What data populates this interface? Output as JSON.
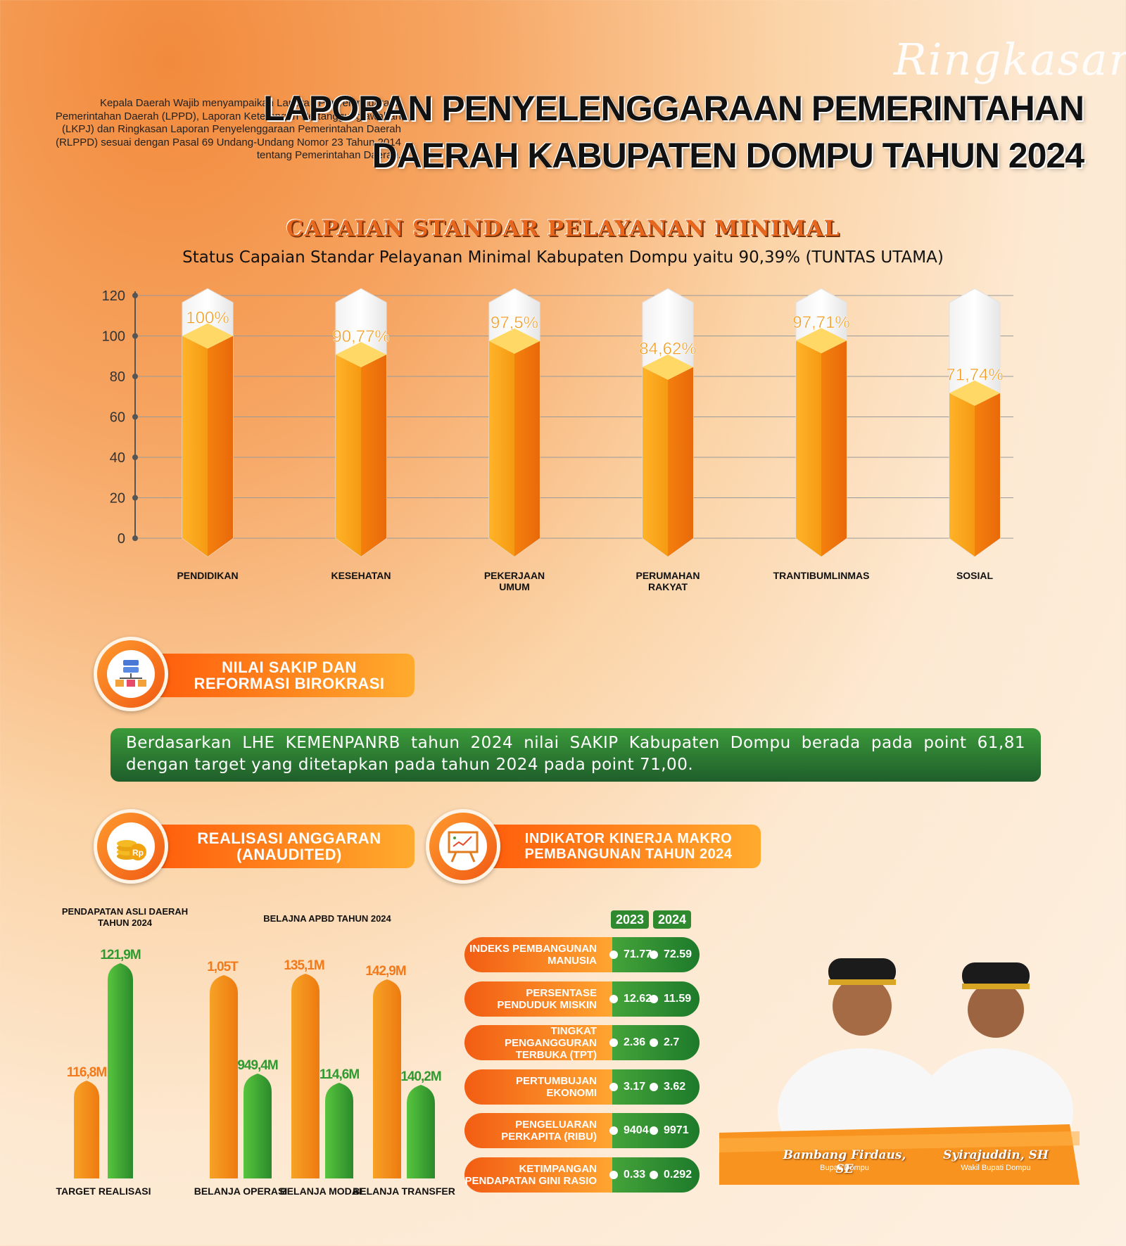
{
  "header": {
    "script_word": "Ringkasan",
    "intro": "Kepala Daerah Wajib menyampaikan Laporan Penyelenggaraan Pemerintahan Daerah (LPPD), Laporan Keterangan Pertanggungjawaban (LKPJ) dan Ringkasan Laporan Penyelenggaraan Pemerintahan Daerah (RLPPD) sesuai dengan Pasal 69 Undang-Undang Nomor 23 Tahun 2014 tentang Pemerintahan Daerah.",
    "title_line1": "LAPORAN PENYELENGGARAAN PEMERINTAHAN",
    "title_line2": "DAERAH KABUPATEN DOMPU TAHUN 2024"
  },
  "spm": {
    "heading": "CAPAIAN STANDAR PELAYANAN MINIMAL",
    "subtitle": "Status Capaian Standar Pelayanan Minimal Kabupaten Dompu yaitu 90,39% (TUNTAS UTAMA)"
  },
  "sakip": {
    "badge_line1": "NILAI SAKIP DAN",
    "badge_line2": "REFORMASI BIROKRASI",
    "text": "Berdasarkan LHE KEMENPANRB tahun 2024 nilai SAKIP Kabupaten Dompu berada pada point 61,81 dengan target yang ditetapkan pada tahun 2024 pada  point 71,00."
  },
  "anggaran": {
    "badge_line1": "REALISASI ANGGARAN",
    "badge_line2": "(ANAUDITED)",
    "pad_caption_line1": "PENDAPATAN ASLI DAERAH",
    "pad_caption_line2": "TAHUN 2024",
    "belanja_caption": "BELAJNA APBD TAHUN 2024"
  },
  "makro": {
    "badge_line1": "INDIKATOR KINERJA MAKRO",
    "badge_line2": "PEMBANGUNAN TAHUN 2024",
    "year1": "2023",
    "year2": "2024",
    "rows": [
      {
        "label": "INDEKS PEMBANGUNAN MANUSIA",
        "v2023": "71.77",
        "v2024": "72.59"
      },
      {
        "label": "PERSENTASE PENDUDUK MISKIN",
        "v2023": "12.62",
        "v2024": "11.59"
      },
      {
        "label": "TINGKAT PENGANGGURAN TERBUKA (TPT)",
        "v2023": "2.36",
        "v2024": "2.7"
      },
      {
        "label": "PERTUMBUJAN EKONOMI",
        "v2023": "3.17",
        "v2024": "3.62"
      },
      {
        "label": "PENGELUARAN PERKAPITA (RIBU)",
        "v2023": "9404",
        "v2024": "9971"
      },
      {
        "label": "KETIMPANGAN PENDAPATAN GINI RASIO",
        "v2023": "0.33",
        "v2024": "0.292"
      }
    ]
  },
  "officials": {
    "name1": "Bambang Firdaus, SE",
    "role1": "Bupati Dompu",
    "name2": "Syirajuddin, SH",
    "role2": "Wakil Bupati Dompu"
  },
  "colors": {
    "orange": "#f7931e",
    "green": "#2f8a2f",
    "accent": "#e8671f"
  },
  "chart_data": [
    {
      "type": "bar",
      "categories": [
        "PENDIDIKAN",
        "KESEHATAN",
        "PEKERJAAN UMUM",
        "PERUMAHAN RAKYAT",
        "TRANTIBUMLINMAS",
        "SOSIAL"
      ],
      "values": [
        100,
        90.77,
        97.5,
        84.62,
        97.71,
        71.74
      ],
      "data_labels": [
        "100%",
        "90,77%",
        "97,5%",
        "84,62%",
        "97,71%",
        "71,74%"
      ],
      "ylim": [
        0,
        120
      ],
      "yticks": [
        0,
        20,
        40,
        60,
        80,
        100,
        120
      ],
      "grid": true
    },
    {
      "type": "bar",
      "categories": [
        "TARGET",
        "REALISASI"
      ],
      "values": [
        116.8,
        121.9
      ],
      "data_labels": [
        "116,8M",
        "121,9M"
      ],
      "xlabel": "TARGET REALISASI"
    },
    {
      "type": "bar",
      "categories": [
        "BELANJA OPERASI",
        "BELANJA MODAL",
        "BELANJA TRANSFER"
      ],
      "series": [
        {
          "values": [
            1050,
            135.1,
            142.9
          ],
          "labels": [
            "1,05T",
            "135,1M",
            "142,9M"
          ]
        },
        {
          "values": [
            949.4,
            114.6,
            140.2
          ],
          "labels": [
            "949,4M",
            "114,6M",
            "140,2M"
          ]
        }
      ]
    }
  ]
}
